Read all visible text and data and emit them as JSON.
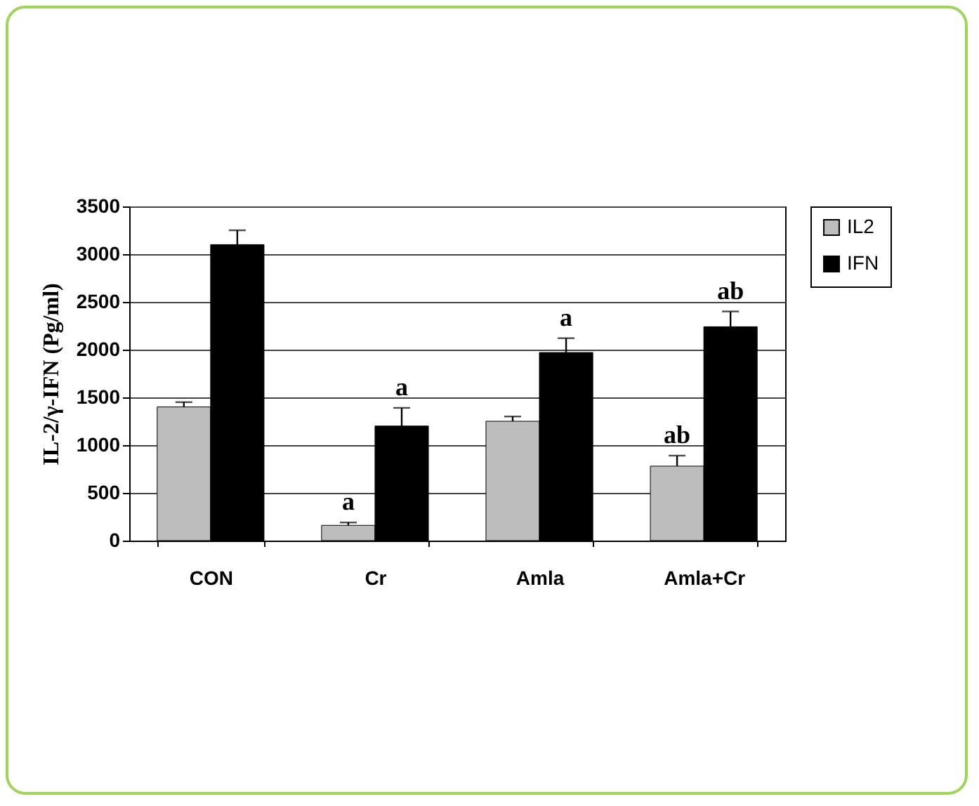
{
  "chart_data": {
    "type": "bar",
    "ylabel": "IL-2/γ-IFN (Pg/ml)",
    "categories": [
      "CON",
      "Cr",
      "Amla",
      "Amla+Cr"
    ],
    "series": [
      {
        "name": "IL2",
        "color": "#bdbdbd",
        "values": [
          1400,
          160,
          1250,
          780
        ],
        "errors": [
          50,
          30,
          50,
          110
        ]
      },
      {
        "name": "IFN",
        "color": "#000000",
        "values": [
          3100,
          1200,
          1970,
          2240
        ],
        "errors": [
          150,
          190,
          150,
          160
        ]
      }
    ],
    "ylim": [
      0,
      3500
    ],
    "yticks": [
      0,
      500,
      1000,
      1500,
      2000,
      2500,
      3000,
      3500
    ],
    "grid": "y",
    "legend": "right",
    "annotations": [
      {
        "text": "a",
        "x": "Cr",
        "y": 160
      },
      {
        "text": "a",
        "x": "Cr",
        "y": 1200
      },
      {
        "text": "a",
        "x": "Amla",
        "y": 1970
      },
      {
        "text": "ab",
        "x": "Amla+Cr",
        "y": 780
      },
      {
        "text": "ab",
        "x": "Amla+Cr",
        "y": 2240
      }
    ]
  }
}
